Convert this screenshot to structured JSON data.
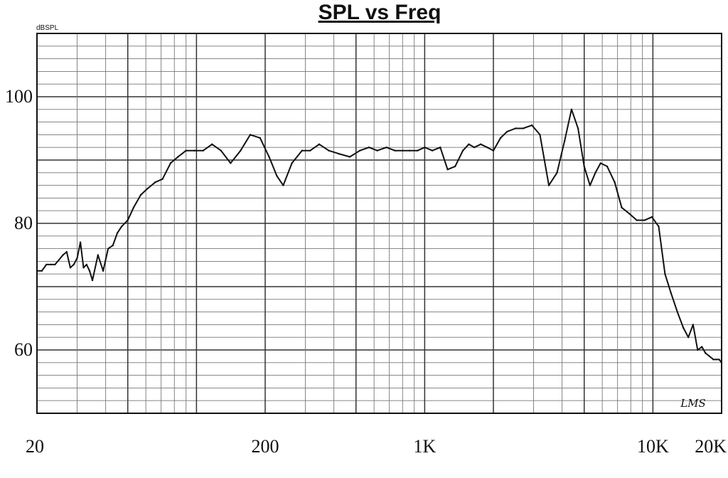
{
  "chart_data": {
    "type": "line",
    "title": "SPL vs Freq",
    "ylabel": "dBSPL",
    "xlabel": "",
    "x_scale": "log",
    "xlim": [
      20,
      20000
    ],
    "ylim": [
      50,
      110
    ],
    "grid": true,
    "y_ticks": [
      {
        "value": 100,
        "label": "100"
      },
      {
        "value": 80,
        "label": "80"
      },
      {
        "value": 60,
        "label": "60"
      }
    ],
    "x_ticks": [
      {
        "value": 20,
        "label": "20"
      },
      {
        "value": 200,
        "label": "200"
      },
      {
        "value": 1000,
        "label": "1K"
      },
      {
        "value": 10000,
        "label": "10K"
      },
      {
        "value": 20000,
        "label": "20K"
      }
    ],
    "watermark": "LMS",
    "series": [
      {
        "x": [
          20,
          21,
          22,
          23,
          24,
          26,
          27,
          28,
          29,
          30,
          31,
          32,
          33,
          34,
          35,
          37,
          39,
          41,
          43,
          45,
          47,
          50,
          53,
          57,
          61,
          66,
          71,
          77,
          83,
          90,
          98,
          107,
          117,
          128,
          141,
          156,
          172,
          190,
          208,
          225,
          240,
          262,
          290,
          315,
          345,
          380,
          420,
          470,
          520,
          570,
          620,
          680,
          740,
          800,
          860,
          930,
          1000,
          1080,
          1170,
          1260,
          1360,
          1470,
          1560,
          1650,
          1760,
          1880,
          2000,
          2150,
          2300,
          2500,
          2700,
          2950,
          3200,
          3500,
          3800,
          4100,
          4400,
          4700,
          5000,
          5300,
          5600,
          5900,
          6300,
          6800,
          7300,
          7900,
          8500,
          9200,
          9900,
          10600,
          11300,
          12000,
          12800,
          13600,
          14300,
          15000,
          15700,
          16400,
          17000,
          17700,
          18400,
          19000,
          19500,
          20000
        ],
        "y": [
          72.5,
          72.5,
          73.5,
          73.5,
          73.5,
          75,
          75.5,
          73,
          73.5,
          74.5,
          77,
          73,
          73.5,
          72.5,
          71,
          75,
          72.5,
          76,
          76.5,
          78.5,
          79.5,
          80.5,
          82.5,
          84.5,
          85.5,
          86.5,
          87,
          89.5,
          90.5,
          91.5,
          91.5,
          91.5,
          92.5,
          91.5,
          89.5,
          91.5,
          94,
          93.5,
          90.5,
          87.5,
          86,
          89.5,
          91.5,
          91.5,
          92.5,
          91.5,
          91,
          90.5,
          91.5,
          92,
          91.5,
          92,
          91.5,
          91.5,
          91.5,
          91.5,
          92,
          91.5,
          92,
          88.5,
          89,
          91.5,
          92.5,
          92,
          92.5,
          92,
          91.5,
          93.5,
          94.5,
          95,
          95,
          95.5,
          94,
          86,
          88,
          93,
          98,
          95,
          89,
          86,
          88,
          89.5,
          89,
          86.5,
          82.5,
          81.5,
          80.5,
          80.5,
          81,
          79.5,
          72,
          69,
          66,
          63.5,
          62,
          64,
          60,
          60.5,
          59.5,
          59,
          58.5,
          58.5,
          58.5,
          58
        ]
      }
    ]
  }
}
